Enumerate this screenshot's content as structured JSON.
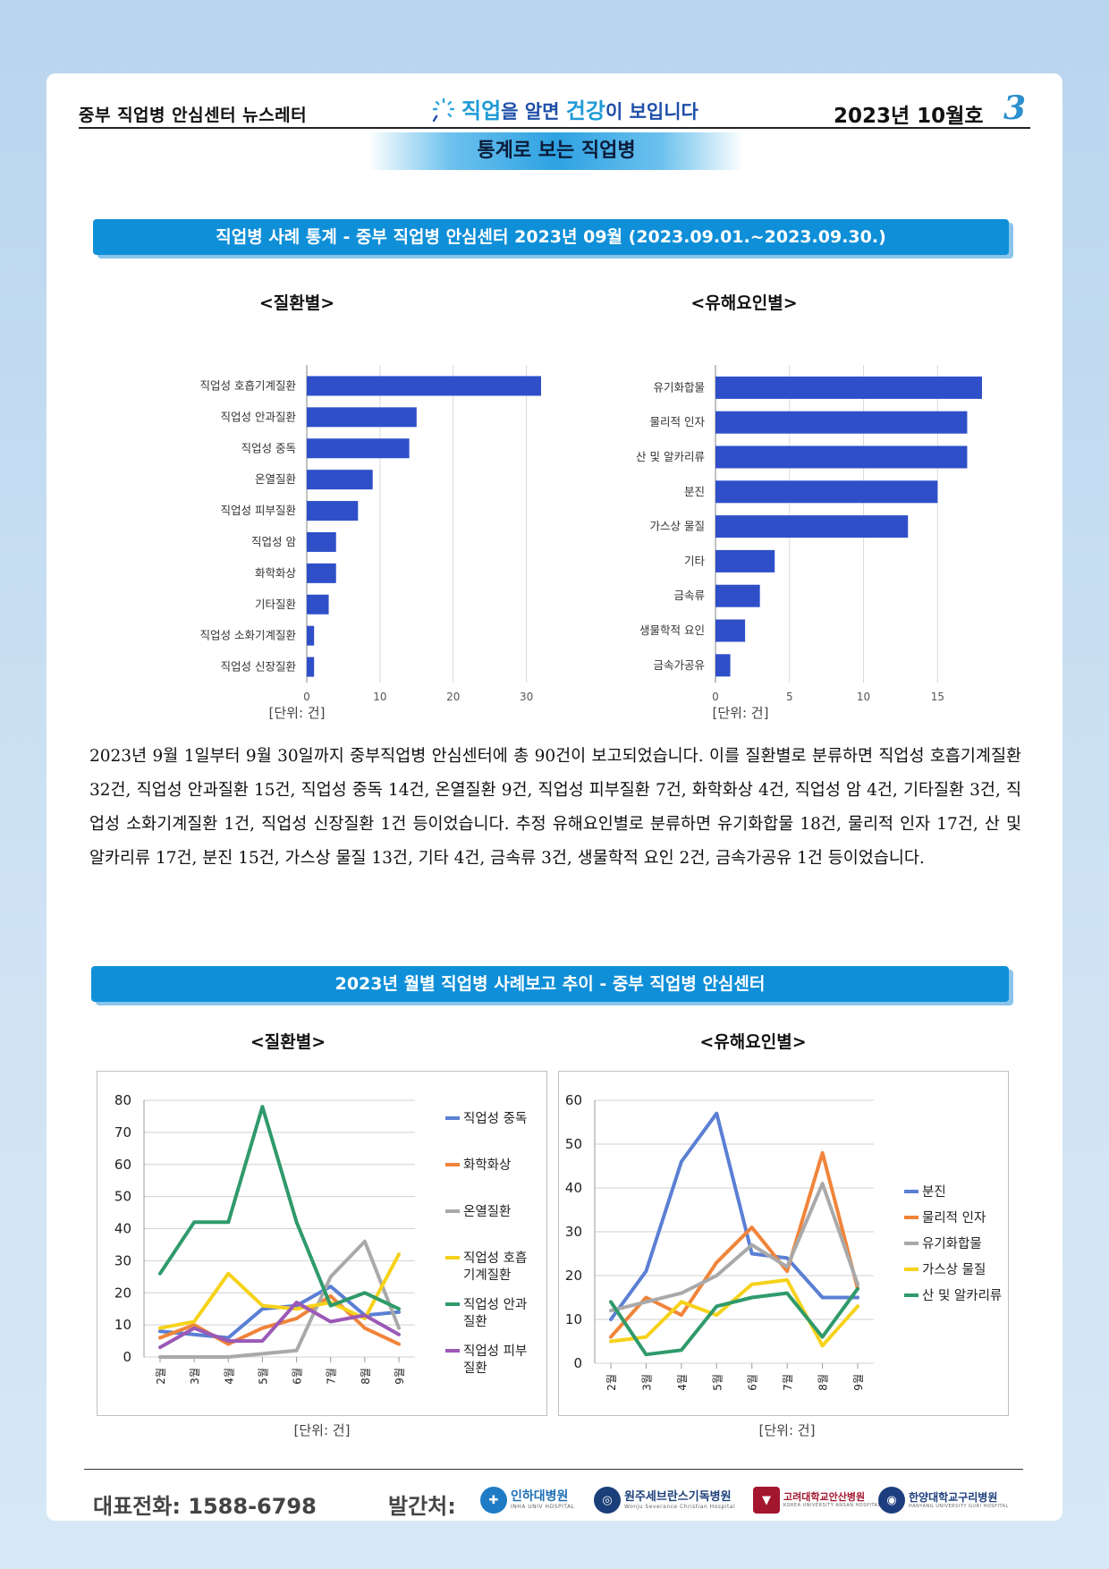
{
  "header": {
    "left": "중부 직업병 안심센터 뉴스레터",
    "slogan_a": "직업",
    "slogan_b": "을 알면 ",
    "slogan_c": "건강",
    "slogan_d": "이 보입니다",
    "issue": "2023년 10월호",
    "page_number": "3",
    "section_title": "통계로 보는 직업병",
    "accent_color": "#0f8fd8"
  },
  "banner1": "직업병 사례 통계 - 중부 직업병 안심센터   2023년 09월 (2023.09.01.~2023.09.30.)",
  "banner2": "2023년 월별 직업병 사례보고 추이 - 중부 직업병 안심센터",
  "paragraph": "2023년 9월 1일부터 9월 30일까지 중부직업병 안심센터에 총 90건이 보고되었습니다. 이를 질환별로 분류하면 직업성 호흡기계질환 32건, 직업성 안과질환 15건, 직업성 중독 14건, 온열질환 9건, 직업성 피부질환 7건, 화학화상 4건, 직업성 암 4건, 기타질환 3건, 직업성 소화기계질환 1건, 직업성 신장질환 1건 등이었습니다. 추정 유해요인별로 분류하면 유기화합물 18건, 물리적 인자 17건, 산 및 알카리류 17건, 분진 15건, 가스상 물질 13건, 기타 4건, 금속류 3건, 생물학적 요인 2건, 금속가공유 1건 등이었습니다.",
  "footer": {
    "phone": "대표전화:  1588-6798",
    "publisher_label": "발간처:",
    "logos": [
      {
        "name": "인하대병원",
        "sub": "INHA UNIV HOSPITAL"
      },
      {
        "name": "원주세브란스기독병원",
        "sub": "Wonju Severance Christian Hospital"
      },
      {
        "name": "고려대학교안산병원",
        "sub": "KOREA UNIVERSITY ANSAN HOSPITAL"
      },
      {
        "name": "한양대학교구리병원",
        "sub": "HANYANG UNIVERSITY GURI HOSPITAL"
      }
    ]
  },
  "chart_data": [
    {
      "type": "bar",
      "orientation": "horizontal",
      "title": "<질환별>",
      "unit_label": "[단위: 건]",
      "categories": [
        "직업성 호흡기계질환",
        "직업성 안과질환",
        "직업성 중독",
        "온열질환",
        "직업성 피부질환",
        "직업성 암",
        "화학화상",
        "기타질환",
        "직업성 소화기계질환",
        "직업성 신장질환"
      ],
      "values": [
        32,
        15,
        14,
        9,
        7,
        4,
        4,
        3,
        1,
        1
      ],
      "xlim": [
        0,
        32
      ],
      "xticks": [
        "0",
        "10",
        "20",
        "30"
      ],
      "color": "#2f4fc9",
      "grid": true
    },
    {
      "type": "bar",
      "orientation": "horizontal",
      "title": "<유해요인별>",
      "unit_label": "[단위: 건]",
      "categories": [
        "유기화합물",
        "물리적 인자",
        "산 및 알카리류",
        "분진",
        "가스상 물질",
        "기타",
        "금속류",
        "생물학적 요인",
        "금속가공유"
      ],
      "values": [
        18,
        17,
        17,
        15,
        13,
        4,
        3,
        2,
        1
      ],
      "xlim": [
        0,
        18
      ],
      "xticks": [
        "0",
        "5",
        "10",
        "15"
      ],
      "color": "#2f4fc9",
      "grid": true
    },
    {
      "type": "line",
      "title": "<질환별>",
      "unit_label": "[단위: 건]",
      "categories": [
        "2월",
        "3월",
        "4월",
        "5월",
        "6월",
        "7월",
        "8월",
        "9월"
      ],
      "ylim": [
        0,
        80
      ],
      "yticks": [
        "0",
        "10",
        "20",
        "30",
        "40",
        "50",
        "60",
        "70",
        "80"
      ],
      "legend": "right",
      "series": [
        {
          "name": "직업성 중독",
          "lines": [
            "직업성 중독"
          ],
          "color": "#5b7fd4",
          "values": [
            8,
            7,
            6,
            15,
            16,
            22,
            13,
            14
          ]
        },
        {
          "name": "화학화상",
          "lines": [
            "화학화상"
          ],
          "color": "#f0843a",
          "values": [
            6,
            10,
            4,
            9,
            12,
            19,
            9,
            4
          ]
        },
        {
          "name": "온열질환",
          "lines": [
            "온열질환"
          ],
          "color": "#a9a9a9",
          "values": [
            0,
            0,
            0,
            1,
            2,
            25,
            36,
            9
          ]
        },
        {
          "name": "직업성 호흡기계질환",
          "lines": [
            "직업성 호흡",
            "기계질환"
          ],
          "color": "#f6d21a",
          "values": [
            9,
            11,
            26,
            16,
            15,
            17,
            12,
            32
          ]
        },
        {
          "name": "직업성 안과질환",
          "lines": [
            "직업성 안과",
            "질환"
          ],
          "color": "#2f9a6a",
          "values": [
            26,
            42,
            42,
            78,
            42,
            16,
            20,
            15
          ]
        },
        {
          "name": "직업성 피부질환",
          "lines": [
            "직업성 피부",
            "질환"
          ],
          "color": "#9b59b6",
          "values": [
            3,
            9,
            5,
            5,
            17,
            11,
            13,
            7
          ]
        }
      ]
    },
    {
      "type": "line",
      "title": "<유해요인별>",
      "unit_label": "[단위: 건]",
      "categories": [
        "2월",
        "3월",
        "4월",
        "5월",
        "6월",
        "7월",
        "8월",
        "9월"
      ],
      "ylim": [
        0,
        60
      ],
      "yticks": [
        "0",
        "10",
        "20",
        "30",
        "40",
        "50",
        "60"
      ],
      "legend": "right",
      "series": [
        {
          "name": "분진",
          "lines": [
            "분진"
          ],
          "color": "#5b7fd4",
          "values": [
            10,
            21,
            46,
            57,
            25,
            24,
            15,
            15
          ]
        },
        {
          "name": "물리적 인자",
          "lines": [
            "물리적 인자"
          ],
          "color": "#f0843a",
          "values": [
            6,
            15,
            11,
            23,
            31,
            21,
            48,
            17
          ]
        },
        {
          "name": "유기화합물",
          "lines": [
            "유기화합물"
          ],
          "color": "#a9a9a9",
          "values": [
            12,
            14,
            16,
            20,
            27,
            22,
            41,
            18
          ]
        },
        {
          "name": "가스상 물질",
          "lines": [
            "가스상 물질"
          ],
          "color": "#f6d21a",
          "values": [
            5,
            6,
            14,
            11,
            18,
            19,
            4,
            13
          ]
        },
        {
          "name": "산 및 알카리류",
          "lines": [
            "산 및 알카리류"
          ],
          "color": "#2f9a6a",
          "values": [
            14,
            2,
            3,
            13,
            15,
            16,
            6,
            17
          ]
        }
      ]
    }
  ]
}
